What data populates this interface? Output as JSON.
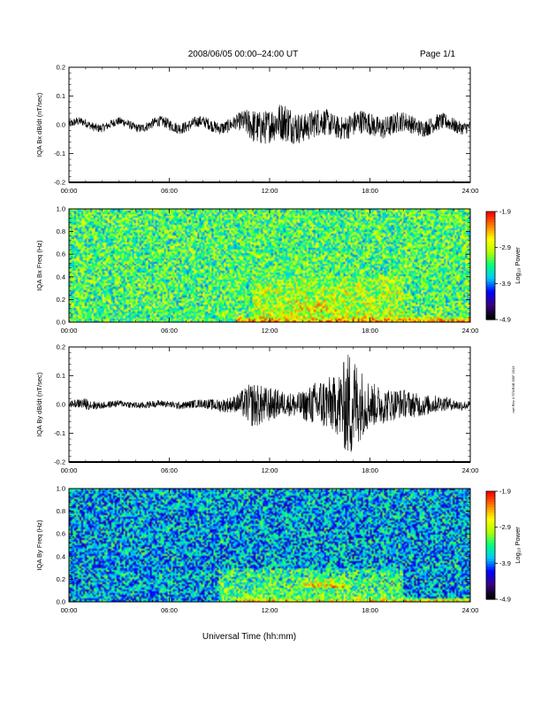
{
  "header": {
    "title": "2008/06/05  00:00–24:00 UT",
    "page": "Page 1/1"
  },
  "footer": {
    "xlabel": "Universal Time (hh:mm)"
  },
  "side_note": "nwl   Rev 4  STAR4B  DBF  2013",
  "colors": {
    "trace": "#000000",
    "colormap": [
      "#000000",
      "#3a0080",
      "#0000ff",
      "#00c8ff",
      "#00ff80",
      "#b4ff00",
      "#ffff00",
      "#ff8000",
      "#ff0000"
    ]
  },
  "chart_data": [
    {
      "type": "line",
      "ylabel": "IQA Bx dB/dt (nT/sec)",
      "xlim": [
        0,
        24
      ],
      "ylim": [
        -0.2,
        0.2
      ],
      "xticks": [
        "00:00",
        "06:00",
        "12:00",
        "18:00",
        "24:00"
      ],
      "yticks": [
        "-0.2",
        "-0.1",
        "0.0",
        "0.1",
        "0.2"
      ],
      "series": [
        {
          "values_note_x_hours": [
            0,
            2,
            4,
            6,
            8,
            10,
            11,
            12,
            13,
            14,
            15,
            16,
            17,
            18,
            19,
            20,
            21,
            22,
            23,
            24
          ],
          "envelope_amplitude": [
            0.015,
            0.015,
            0.015,
            0.02,
            0.02,
            0.025,
            0.06,
            0.06,
            0.07,
            0.05,
            0.05,
            0.04,
            0.045,
            0.04,
            0.04,
            0.035,
            0.03,
            0.03,
            0.025,
            0.02
          ]
        }
      ]
    },
    {
      "type": "heatmap",
      "ylabel": "IQA Bx Freq (Hz)",
      "xlim": [
        0,
        24
      ],
      "ylim": [
        0,
        1
      ],
      "xticks": [
        "00:00",
        "06:00",
        "12:00",
        "18:00",
        "24:00"
      ],
      "yticks": [
        "0.0",
        "0.2",
        "0.4",
        "0.6",
        "0.8",
        "1.0"
      ],
      "colorbar": {
        "label": "Log₁₀ Power",
        "ticks": [
          "-1.9",
          "-2.9",
          "-3.9",
          "-4.9"
        ],
        "range": [
          -4.9,
          -1.9
        ]
      },
      "features": [
        {
          "t": [
            10,
            24
          ],
          "f": [
            0,
            0.04
          ],
          "level": -2.3
        },
        {
          "t": [
            13.5,
            16
          ],
          "f": [
            0.1,
            0.2
          ],
          "level": -2.6
        },
        {
          "t": [
            11,
            20
          ],
          "f": [
            0,
            0.4
          ],
          "level": -2.9
        }
      ],
      "background_level": -3.3
    },
    {
      "type": "line",
      "ylabel": "IQA By dB/dt (nT/sec)",
      "xlim": [
        0,
        24
      ],
      "ylim": [
        -0.2,
        0.2
      ],
      "xticks": [
        "00:00",
        "06:00",
        "12:00",
        "18:00",
        "24:00"
      ],
      "yticks": [
        "-0.2",
        "-0.1",
        "0.0",
        "0.1",
        "0.2"
      ],
      "series": [
        {
          "values_note_x_hours": [
            0,
            1,
            2,
            4,
            6,
            8,
            10,
            11,
            12,
            13,
            14,
            15,
            16,
            16.8,
            17.5,
            18,
            19,
            20,
            21,
            22,
            23,
            24
          ],
          "envelope_amplitude": [
            0.01,
            0.02,
            0.012,
            0.012,
            0.012,
            0.015,
            0.03,
            0.08,
            0.06,
            0.04,
            0.05,
            0.09,
            0.1,
            0.2,
            0.12,
            0.08,
            0.06,
            0.05,
            0.04,
            0.03,
            0.02,
            0.015
          ]
        }
      ]
    },
    {
      "type": "heatmap",
      "ylabel": "IQA By Freq (Hz)",
      "xlim": [
        0,
        24
      ],
      "ylim": [
        0,
        1
      ],
      "xticks": [
        "00:00",
        "06:00",
        "12:00",
        "18:00",
        "24:00"
      ],
      "yticks": [
        "0.0",
        "0.2",
        "0.4",
        "0.6",
        "0.8",
        "1.0"
      ],
      "colorbar": {
        "label": "Log₁₀ Power",
        "ticks": [
          "-1.9",
          "-2.9",
          "-3.9",
          "-4.9"
        ],
        "range": [
          -4.9,
          -1.9
        ]
      },
      "features": [
        {
          "t": [
            10,
            24
          ],
          "f": [
            0,
            0.03
          ],
          "level": -2.5
        },
        {
          "t": [
            14,
            16.5
          ],
          "f": [
            0.13,
            0.2
          ],
          "level": -2.5
        },
        {
          "t": [
            9,
            20
          ],
          "f": [
            0,
            0.3
          ],
          "level": -3.2
        }
      ],
      "background_level": -3.8
    }
  ]
}
